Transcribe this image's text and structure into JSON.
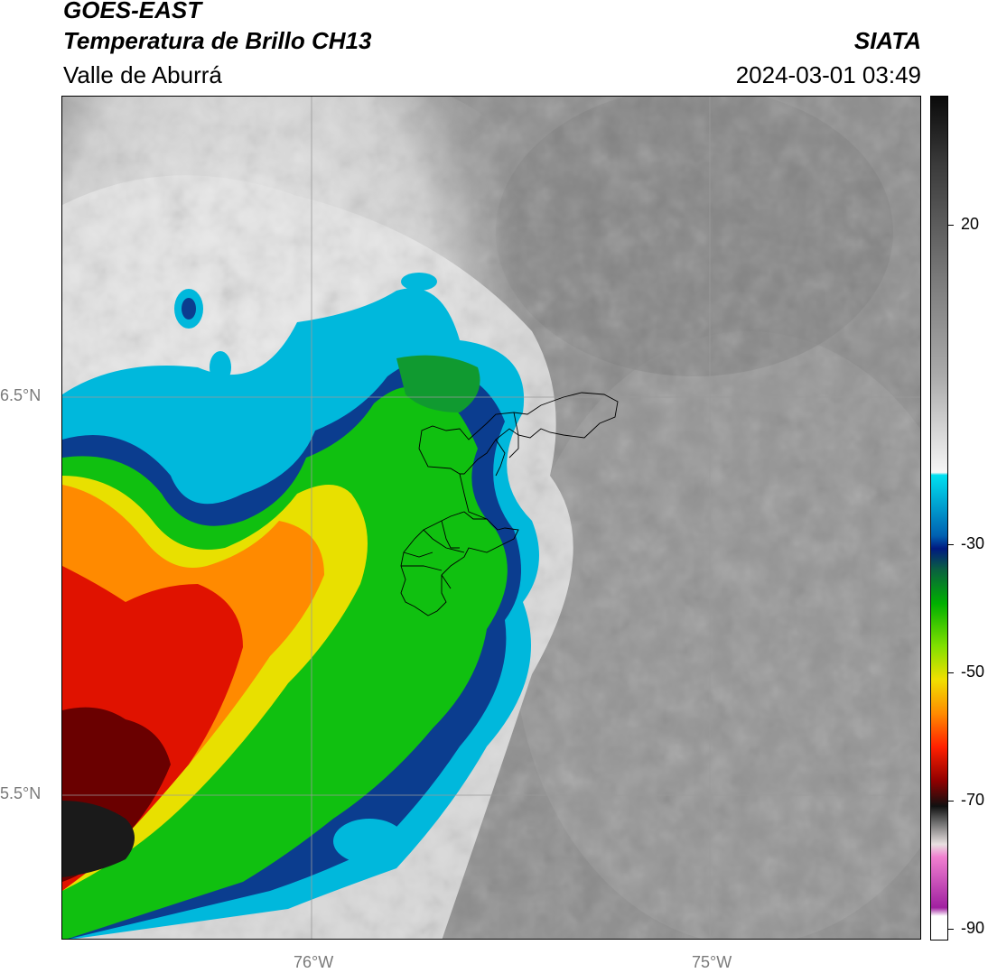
{
  "header": {
    "satellite": "GOES-EAST",
    "product": "Temperatura de Brillo CH13",
    "region": "Valle de Aburrá",
    "agency": "SIATA",
    "datetime": "2024-03-01 03:49"
  },
  "map": {
    "lat_labels": [
      "6.5°N",
      "5.5°N"
    ],
    "lon_labels": [
      "76°W",
      "75°W"
    ]
  },
  "colorbar": {
    "ticks": [
      "20",
      "-30",
      "-50",
      "-70",
      "-90"
    ],
    "colors": {
      "warm_gray": "#8a8a8a",
      "cold_white": "#f2f2f2",
      "cyan": "#00c8e0",
      "blue": "#0a3a8c",
      "green": "#00b400",
      "yellow": "#f0e000",
      "orange": "#ff8c00",
      "red": "#e01000",
      "dark_red": "#5a0000",
      "black": "#111111",
      "pink": "#e060c0",
      "purple": "#9020a0"
    }
  }
}
